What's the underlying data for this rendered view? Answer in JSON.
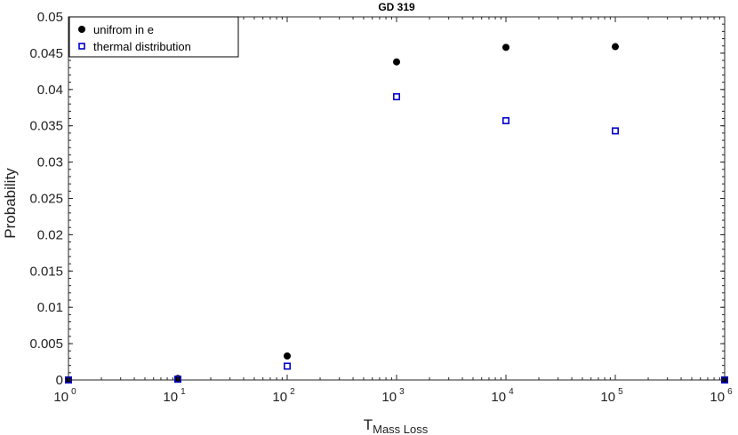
{
  "chart_data": {
    "type": "scatter",
    "title": "GD 319",
    "xlabel_main": "T",
    "xlabel_sub": "Mass Loss",
    "ylabel": "Probability",
    "xscale": "log",
    "xlim": [
      1,
      1000000
    ],
    "ylim": [
      0,
      0.05
    ],
    "x_ticks": [
      {
        "value": 1,
        "base": "10",
        "exp": "0"
      },
      {
        "value": 10,
        "base": "10",
        "exp": "1"
      },
      {
        "value": 100,
        "base": "10",
        "exp": "2"
      },
      {
        "value": 1000,
        "base": "10",
        "exp": "3"
      },
      {
        "value": 10000,
        "base": "10",
        "exp": "4"
      },
      {
        "value": 100000,
        "base": "10",
        "exp": "5"
      },
      {
        "value": 1000000,
        "base": "10",
        "exp": "6"
      }
    ],
    "y_ticks": [
      {
        "value": 0,
        "label": "0"
      },
      {
        "value": 0.005,
        "label": "0.005"
      },
      {
        "value": 0.01,
        "label": "0.01"
      },
      {
        "value": 0.015,
        "label": "0.015"
      },
      {
        "value": 0.02,
        "label": "0.02"
      },
      {
        "value": 0.025,
        "label": "0.025"
      },
      {
        "value": 0.03,
        "label": "0.03"
      },
      {
        "value": 0.035,
        "label": "0.035"
      },
      {
        "value": 0.04,
        "label": "0.04"
      },
      {
        "value": 0.045,
        "label": "0.045"
      },
      {
        "value": 0.05,
        "label": "0.05"
      }
    ],
    "legend_position": "top-left",
    "grid": false,
    "series": [
      {
        "name": "unifrom in e",
        "marker": "filled-circle",
        "color": "#000000",
        "x": [
          1,
          10,
          100,
          1000,
          10000,
          100000,
          1000000
        ],
        "y": [
          0,
          0.0002,
          0.0033,
          0.0438,
          0.0458,
          0.0459,
          0
        ]
      },
      {
        "name": "thermal distribution",
        "marker": "open-square",
        "color": "#0000cc",
        "x": [
          1,
          10,
          100,
          1000,
          10000,
          100000,
          1000000
        ],
        "y": [
          0,
          0.0001,
          0.0019,
          0.039,
          0.0357,
          0.0343,
          0
        ]
      }
    ]
  }
}
